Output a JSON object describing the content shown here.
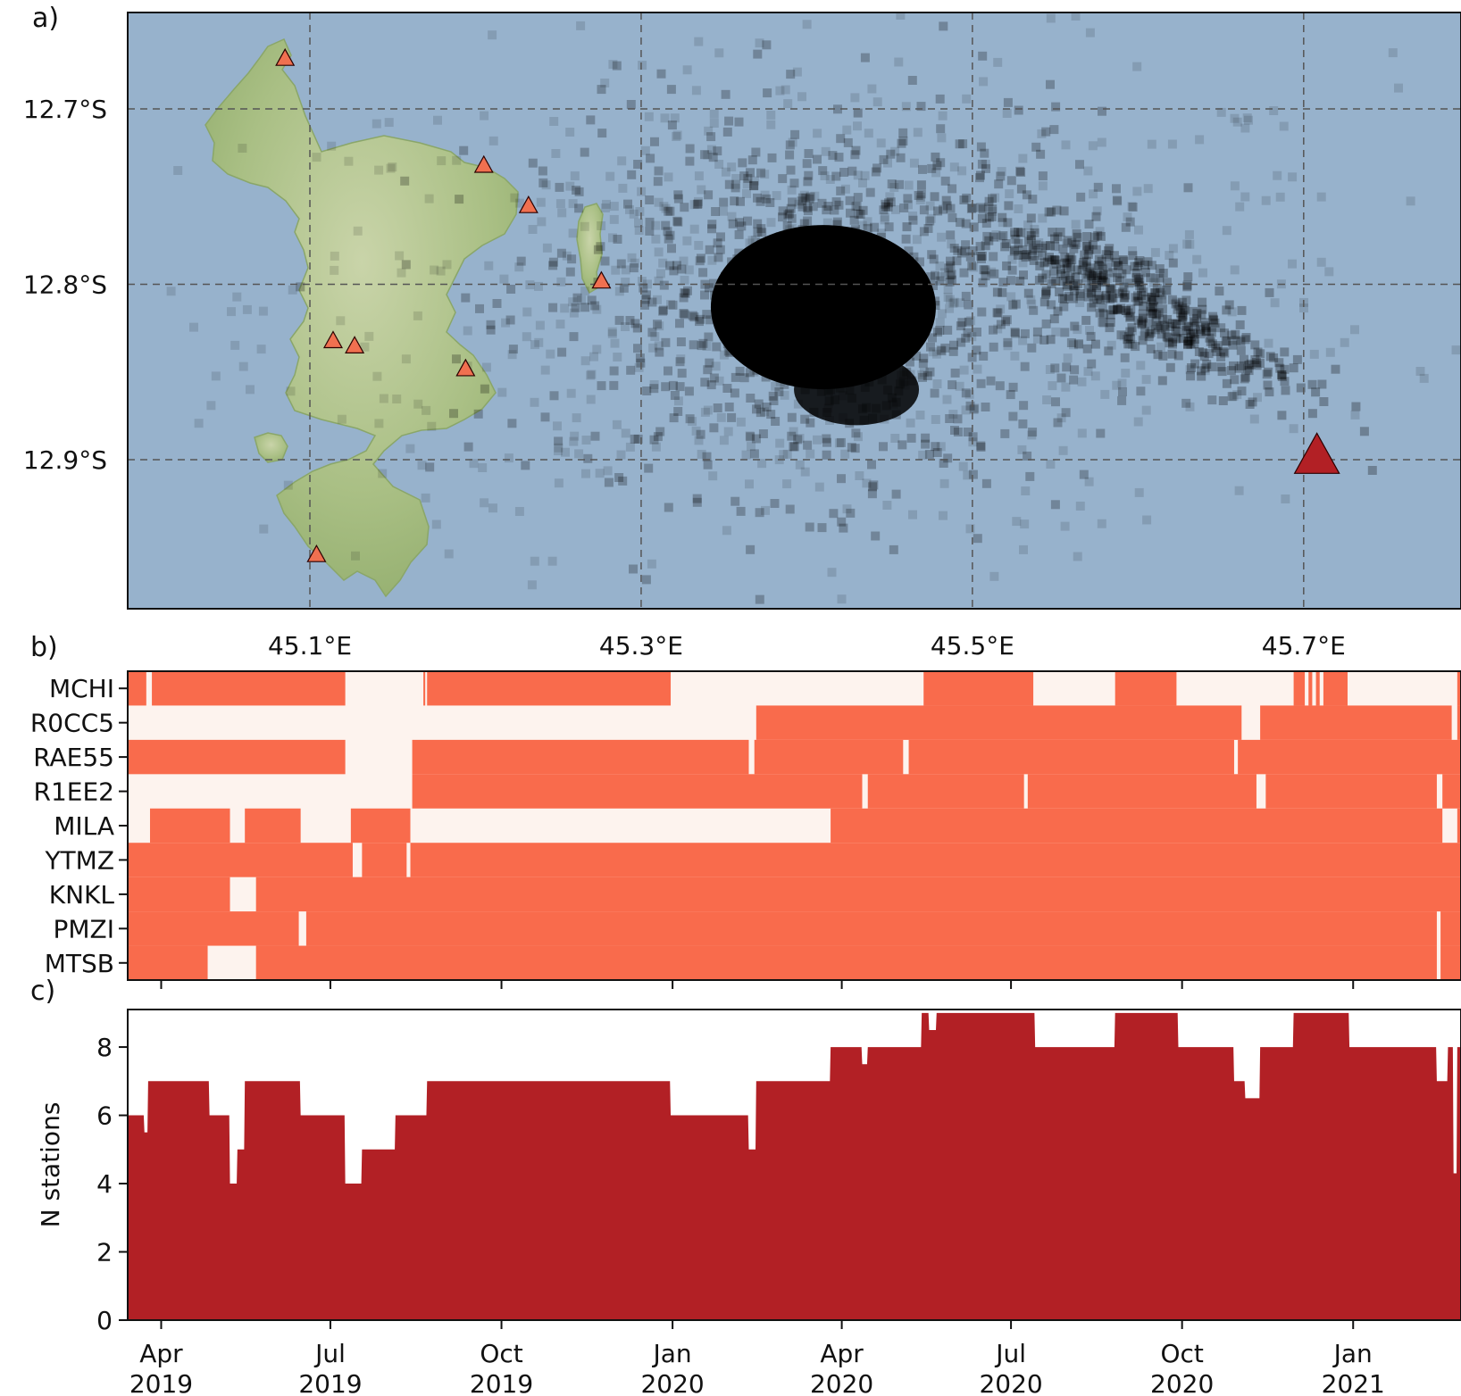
{
  "panels": {
    "a": "a)",
    "b": "b)",
    "c": "c)"
  },
  "colors": {
    "sea": "#97b2cc",
    "land": "#b9c99a",
    "station_marker": "#f07050",
    "large_marker": "#b22025",
    "coverage_on": "#f96b4c",
    "coverage_off": "#fdf3ee",
    "count_fill": "#b22025"
  },
  "chart_data": [
    {
      "type": "scatter",
      "panel": "a)",
      "xlim": [
        44.99,
        45.795
      ],
      "ylim": [
        -12.985,
        -12.645
      ],
      "x_ticks": [
        {
          "value": 45.1,
          "label": "45.1°E"
        },
        {
          "value": 45.3,
          "label": "45.3°E"
        },
        {
          "value": 45.5,
          "label": "45.5°E"
        },
        {
          "value": 45.7,
          "label": "45.7°E"
        }
      ],
      "y_ticks": [
        {
          "value": -12.7,
          "label": "12.7°S"
        },
        {
          "value": -12.8,
          "label": "12.8°S"
        },
        {
          "value": -12.9,
          "label": "12.9°S"
        }
      ],
      "grid": true,
      "stations": [
        {
          "lon": 45.085,
          "lat": -12.672
        },
        {
          "lon": 45.205,
          "lat": -12.733
        },
        {
          "lon": 45.232,
          "lat": -12.756
        },
        {
          "lon": 45.276,
          "lat": -12.799
        },
        {
          "lon": 45.114,
          "lat": -12.833
        },
        {
          "lon": 45.127,
          "lat": -12.836
        },
        {
          "lon": 45.194,
          "lat": -12.849
        },
        {
          "lon": 45.104,
          "lat": -12.955
        }
      ],
      "large_station": {
        "lon": 45.708,
        "lat": -12.9
      },
      "event_clusters": [
        {
          "center_lon": 45.41,
          "center_lat": -12.81,
          "spread_lon": 0.07,
          "spread_lat": 0.045,
          "share": "dense"
        },
        {
          "center_lon": 45.6,
          "center_lat": -12.81,
          "spread_lon": 0.05,
          "spread_lat": 0.015,
          "share": "elongated"
        }
      ]
    },
    {
      "type": "heatmap",
      "panel": "b)",
      "time_range": [
        "2019-03-14",
        "2021-02-28"
      ],
      "stations": [
        "MCHI",
        "R0CC5",
        "RAE55",
        "R1EE2",
        "MILA",
        "YTMZ",
        "KNKL",
        "PMZI",
        "MTSB"
      ],
      "available_periods": {
        "MCHI": [
          [
            "2019-03-14",
            "2019-03-24"
          ],
          [
            "2019-03-27",
            "2019-07-09"
          ],
          [
            "2019-08-20",
            "2019-08-21"
          ],
          [
            "2019-08-22",
            "2019-12-31"
          ],
          [
            "2020-05-15",
            "2020-07-13"
          ],
          [
            "2020-08-26",
            "2020-09-28"
          ],
          [
            "2020-11-30",
            "2020-12-06"
          ],
          [
            "2020-12-08",
            "2020-12-10"
          ],
          [
            "2020-12-12",
            "2020-12-14"
          ],
          [
            "2020-12-16",
            "2020-12-29"
          ],
          [
            "2021-02-26",
            "2021-02-28"
          ]
        ],
        "R0CC5": [
          [
            "2020-02-15",
            "2020-11-02"
          ],
          [
            "2020-11-12",
            "2021-02-23"
          ],
          [
            "2021-02-26",
            "2021-02-28"
          ]
        ],
        "RAE55": [
          [
            "2019-03-14",
            "2019-07-09"
          ],
          [
            "2019-08-14",
            "2020-02-11"
          ],
          [
            "2020-02-14",
            "2020-05-04"
          ],
          [
            "2020-05-07",
            "2020-10-29"
          ],
          [
            "2020-10-31",
            "2021-02-28"
          ]
        ],
        "R1EE2": [
          [
            "2019-08-14",
            "2020-04-12"
          ],
          [
            "2020-04-15",
            "2020-07-08"
          ],
          [
            "2020-07-10",
            "2020-11-10"
          ],
          [
            "2020-11-15",
            "2021-02-15"
          ],
          [
            "2021-02-18",
            "2021-02-28"
          ]
        ],
        "MILA": [
          [
            "2019-03-26",
            "2019-05-08"
          ],
          [
            "2019-05-16",
            "2019-06-15"
          ],
          [
            "2019-07-12",
            "2019-08-13"
          ],
          [
            "2020-03-26",
            "2021-02-18"
          ],
          [
            "2021-02-26",
            "2021-02-28"
          ]
        ],
        "YTMZ": [
          [
            "2019-03-14",
            "2019-07-13"
          ],
          [
            "2019-07-18",
            "2019-08-11"
          ],
          [
            "2019-08-13",
            "2021-02-28"
          ]
        ],
        "KNKL": [
          [
            "2019-03-14",
            "2019-05-08"
          ],
          [
            "2019-05-22",
            "2021-02-28"
          ]
        ],
        "PMZI": [
          [
            "2019-03-14",
            "2019-06-14"
          ],
          [
            "2019-06-18",
            "2021-02-15"
          ],
          [
            "2021-02-17",
            "2021-02-28"
          ]
        ],
        "MTSB": [
          [
            "2019-03-14",
            "2019-04-26"
          ],
          [
            "2019-05-22",
            "2021-02-15"
          ],
          [
            "2021-02-17",
            "2021-02-28"
          ]
        ]
      }
    },
    {
      "type": "area",
      "panel": "c)",
      "ylabel": "N stations",
      "ylim": [
        0,
        9.1
      ],
      "y_ticks": [
        0,
        2,
        4,
        6,
        8
      ],
      "x_ticks": [
        {
          "date": "2019-04-01",
          "label": "Apr",
          "year": "2019"
        },
        {
          "date": "2019-07-01",
          "label": "Jul",
          "year": "2019"
        },
        {
          "date": "2019-10-01",
          "label": "Oct",
          "year": "2019"
        },
        {
          "date": "2020-01-01",
          "label": "Jan",
          "year": "2020"
        },
        {
          "date": "2020-04-01",
          "label": "Apr",
          "year": "2020"
        },
        {
          "date": "2020-07-01",
          "label": "Jul",
          "year": "2020"
        },
        {
          "date": "2020-10-01",
          "label": "Oct",
          "year": "2020"
        },
        {
          "date": "2021-01-01",
          "label": "Jan",
          "year": "2021"
        }
      ],
      "steps": [
        [
          "2019-03-14",
          6
        ],
        [
          "2019-03-23",
          5.5
        ],
        [
          "2019-03-25",
          7
        ],
        [
          "2019-04-27",
          6
        ],
        [
          "2019-05-08",
          4
        ],
        [
          "2019-05-12",
          5
        ],
        [
          "2019-05-16",
          7
        ],
        [
          "2019-06-15",
          6
        ],
        [
          "2019-07-09",
          4
        ],
        [
          "2019-07-18",
          5
        ],
        [
          "2019-08-05",
          6
        ],
        [
          "2019-08-22",
          7
        ],
        [
          "2019-12-31",
          6
        ],
        [
          "2020-02-11",
          5
        ],
        [
          "2020-02-15",
          7
        ],
        [
          "2020-03-26",
          8
        ],
        [
          "2020-04-12",
          7.5
        ],
        [
          "2020-04-15",
          8
        ],
        [
          "2020-05-14",
          9
        ],
        [
          "2020-05-18",
          8.5
        ],
        [
          "2020-05-22",
          9
        ],
        [
          "2020-07-14",
          8
        ],
        [
          "2020-08-26",
          9
        ],
        [
          "2020-09-29",
          8
        ],
        [
          "2020-10-29",
          7
        ],
        [
          "2020-11-04",
          6.5
        ],
        [
          "2020-11-12",
          8
        ],
        [
          "2020-11-30",
          9
        ],
        [
          "2020-12-30",
          8
        ],
        [
          "2021-02-15",
          7
        ],
        [
          "2021-02-21",
          8
        ],
        [
          "2021-02-24",
          4.3
        ],
        [
          "2021-02-26",
          8
        ],
        [
          "2021-02-28",
          8
        ]
      ]
    }
  ]
}
